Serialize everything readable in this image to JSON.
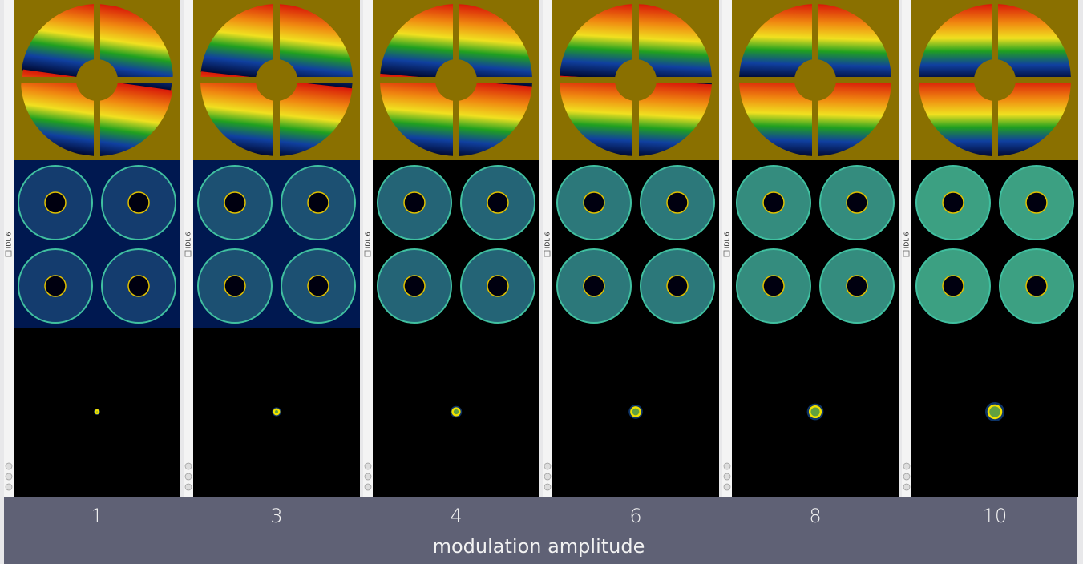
{
  "panels": [
    {
      "window_title": "IDL 6",
      "label": 1
    },
    {
      "window_title": "IDL 6",
      "label": 3
    },
    {
      "window_title": "IDL 6",
      "label": 4
    },
    {
      "window_title": "IDL 6",
      "label": 6
    },
    {
      "window_title": "IDL 6",
      "label": 8
    },
    {
      "window_title": "IDL 6",
      "label": 10
    }
  ],
  "caption": "modulation amplitude"
}
